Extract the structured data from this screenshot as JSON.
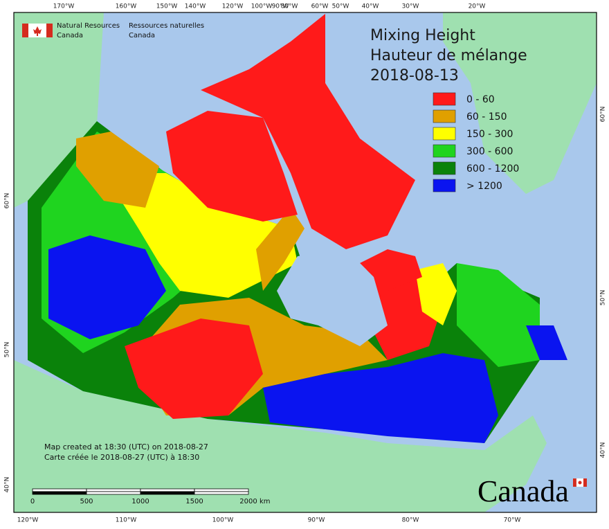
{
  "header": {
    "org_en_1": "Natural Resources",
    "org_en_2": "Canada",
    "org_fr_1": "Ressources naturelles",
    "org_fr_2": "Canada"
  },
  "title": {
    "line1": "Mixing Height",
    "line2": "Hauteur de mélange",
    "date": "2018-08-13"
  },
  "legend": [
    {
      "label": "0 - 60",
      "color": "#ff1a1a"
    },
    {
      "label": "60 - 150",
      "color": "#e0a000"
    },
    {
      "label": "150 - 300",
      "color": "#ffff00"
    },
    {
      "label": "300 - 600",
      "color": "#1fd41f"
    },
    {
      "label": "600 - 1200",
      "color": "#0a820a"
    },
    {
      "label": "> 1200",
      "color": "#0a14f0"
    }
  ],
  "graticule": {
    "top": [
      "170°W",
      "160°W",
      "150°W",
      "140°W",
      "120°W",
      "100°W",
      "90°W",
      "80°W",
      "60°W",
      "50°W",
      "40°W",
      "30°W",
      "20°W"
    ],
    "bottom": [
      "120°W",
      "110°W",
      "100°W",
      "90°W",
      "80°W",
      "70°W"
    ],
    "left": [
      "60°N",
      "50°N",
      "40°N"
    ],
    "right": [
      "60°N",
      "50°N",
      "40°N"
    ]
  },
  "notes": {
    "created_en": "Map created at 18:30 (UTC) on 2018-08-27",
    "created_fr": "Carte créée le 2018-08-27 (UTC) à 18:30"
  },
  "scale_bar": {
    "labels": [
      "0",
      "500",
      "1000",
      "1500",
      "2000"
    ],
    "unit": "km"
  },
  "wordmark": "Canada"
}
